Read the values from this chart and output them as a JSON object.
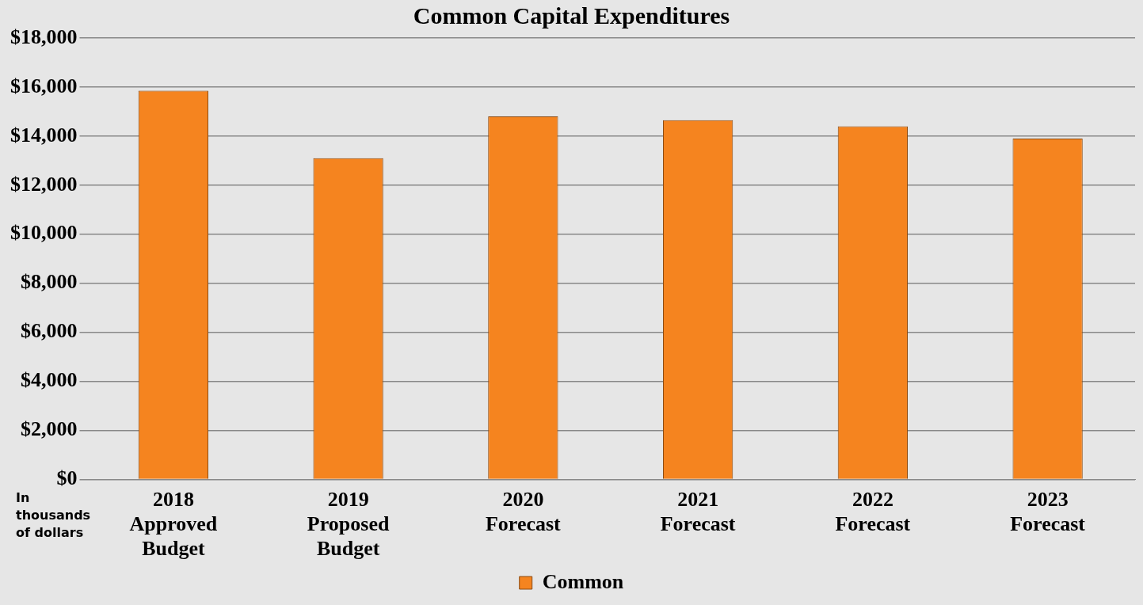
{
  "chart_data": {
    "type": "bar",
    "title": "Common Capital Expenditures",
    "categories": [
      "2018\nApproved\nBudget",
      "2019\nProposed\nBudget",
      "2020\nForecast",
      "2021\nForecast",
      "2022\nForecast",
      "2023\nForecast"
    ],
    "series": [
      {
        "name": "Common",
        "color": "#f5841f",
        "values": [
          15850,
          13100,
          14800,
          14650,
          14400,
          13900
        ]
      }
    ],
    "ylim": [
      0,
      18000
    ],
    "yticks": [
      {
        "value": 0,
        "label": "$0"
      },
      {
        "value": 2000,
        "label": "$2,000"
      },
      {
        "value": 4000,
        "label": "$4,000"
      },
      {
        "value": 6000,
        "label": "$6,000"
      },
      {
        "value": 8000,
        "label": "$8,000"
      },
      {
        "value": 10000,
        "label": "$10,000"
      },
      {
        "value": 12000,
        "label": "$12,000"
      },
      {
        "value": 14000,
        "label": "$14,000"
      },
      {
        "value": 16000,
        "label": "$16,000"
      },
      {
        "value": 18000,
        "label": "$18,000"
      }
    ],
    "grid": "y",
    "legend": "bottom",
    "annotations": [
      "In\nthousands\nof dollars"
    ]
  }
}
